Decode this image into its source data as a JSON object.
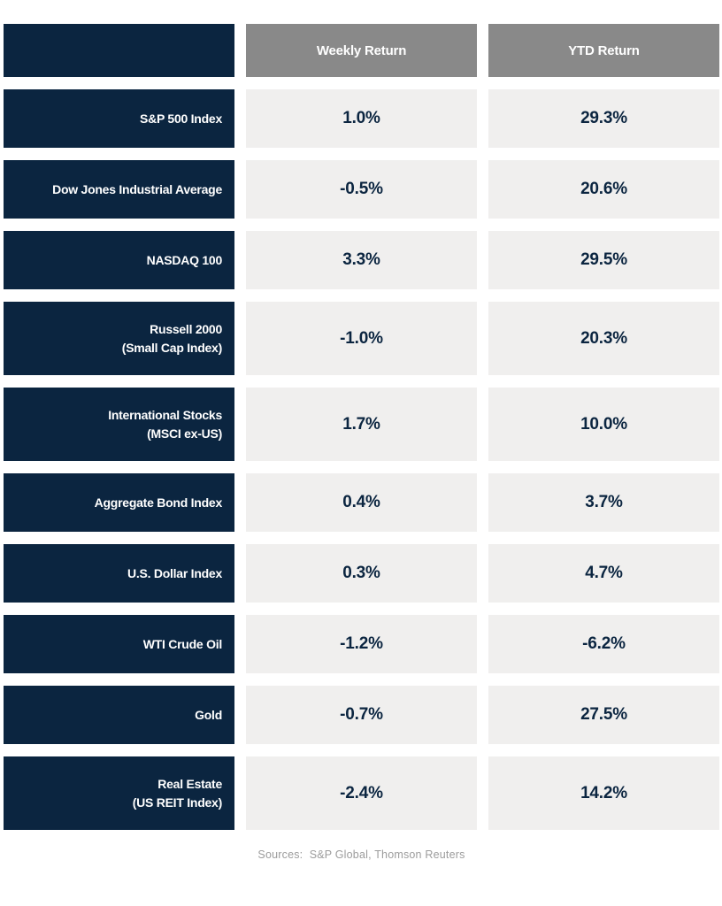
{
  "table": {
    "columns": [
      "Weekly Return",
      "YTD Return"
    ],
    "rows": [
      {
        "label": "S&P 500 Index",
        "weekly": "1.0%",
        "ytd": "29.3%"
      },
      {
        "label": "Dow Jones Industrial Average",
        "weekly": "-0.5%",
        "ytd": "20.6%"
      },
      {
        "label": "NASDAQ 100",
        "weekly": "3.3%",
        "ytd": "29.5%"
      },
      {
        "label": "Russell 2000\n(Small Cap Index)",
        "weekly": "-1.0%",
        "ytd": "20.3%"
      },
      {
        "label": "International Stocks\n(MSCI ex-US)",
        "weekly": "1.7%",
        "ytd": "10.0%"
      },
      {
        "label": "Aggregate Bond Index",
        "weekly": "0.4%",
        "ytd": "3.7%"
      },
      {
        "label": "U.S. Dollar Index",
        "weekly": "0.3%",
        "ytd": "4.7%"
      },
      {
        "label": "WTI Crude Oil",
        "weekly": "-1.2%",
        "ytd": "-6.2%"
      },
      {
        "label": "Gold",
        "weekly": "-0.7%",
        "ytd": "27.5%"
      },
      {
        "label": "Real Estate\n(US REIT Index)",
        "weekly": "-2.4%",
        "ytd": "14.2%"
      }
    ],
    "source_note": "Sources:  S&P Global, Thomson Reuters"
  },
  "colors": {
    "navy": "#0b2540",
    "header_gray": "#898989",
    "cell_light": "#f0efee",
    "source_text": "#9c9c9c",
    "background": "#ffffff"
  },
  "chart_data": {
    "type": "table",
    "title": "",
    "columns": [
      "Weekly Return",
      "YTD Return"
    ],
    "categories": [
      "S&P 500 Index",
      "Dow Jones Industrial Average",
      "NASDAQ 100",
      "Russell 2000 (Small Cap Index)",
      "International Stocks (MSCI ex-US)",
      "Aggregate Bond Index",
      "U.S. Dollar Index",
      "WTI Crude Oil",
      "Gold",
      "Real Estate (US REIT Index)"
    ],
    "series": [
      {
        "name": "Weekly Return",
        "unit": "%",
        "values": [
          1.0,
          -0.5,
          3.3,
          -1.0,
          1.7,
          0.4,
          0.3,
          -1.2,
          -0.7,
          -2.4
        ]
      },
      {
        "name": "YTD Return",
        "unit": "%",
        "values": [
          29.3,
          20.6,
          29.5,
          20.3,
          10.0,
          3.7,
          4.7,
          -6.2,
          27.5,
          14.2
        ]
      }
    ],
    "source": "Sources:  S&P Global, Thomson Reuters",
    "layout": {
      "header_row": true,
      "label_column": "left",
      "values_centered": true
    }
  }
}
